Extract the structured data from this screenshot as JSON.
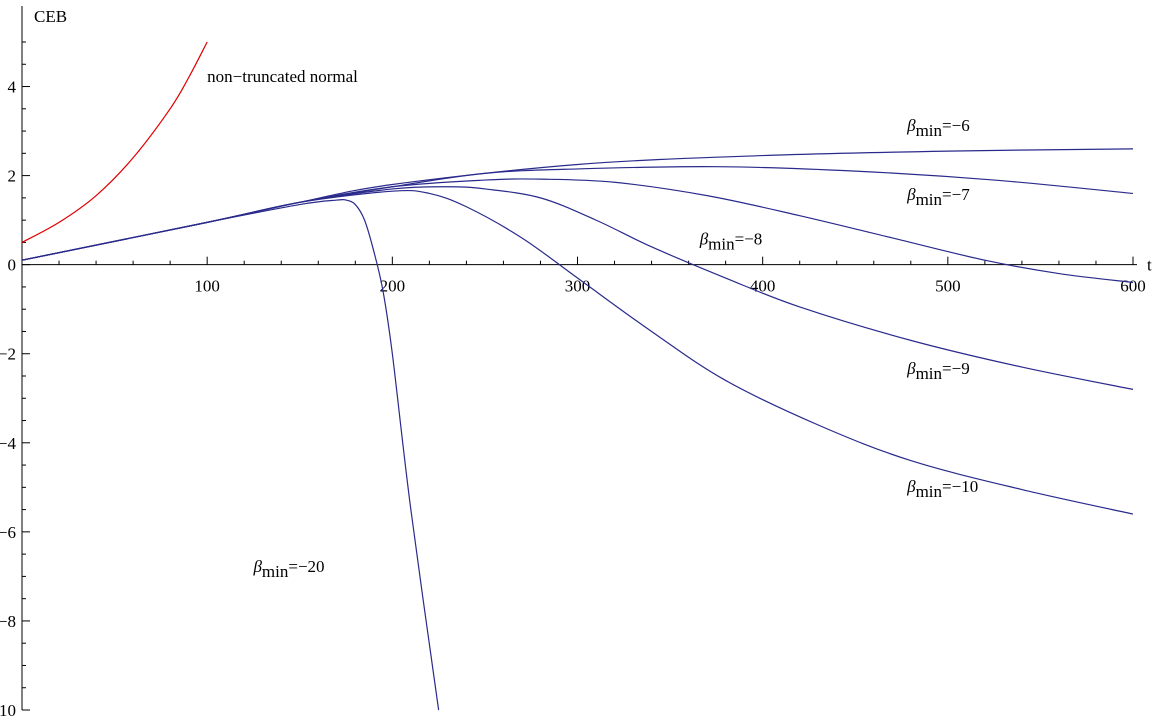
{
  "chart_data": {
    "type": "line",
    "xlabel": "t",
    "ylabel": "CEB",
    "xlim": [
      0,
      600
    ],
    "ylim": [
      -10,
      5
    ],
    "x_ticks": [
      100,
      200,
      300,
      400,
      500,
      600
    ],
    "x_tick_labels": [
      "100",
      "200",
      "300",
      "400",
      "500",
      "600"
    ],
    "y_ticks": [
      -10,
      -8,
      -6,
      -4,
      -2,
      0,
      2,
      4
    ],
    "y_tick_labels": [
      "−10",
      "−8",
      "−6",
      "−4",
      "−2",
      "0",
      "2",
      "4"
    ],
    "grid": false,
    "series": [
      {
        "name": "non−truncated normal",
        "color": "#e00000",
        "x": [
          0,
          20,
          40,
          60,
          80,
          90,
          100
        ],
        "y": [
          0.5,
          0.95,
          1.55,
          2.4,
          3.5,
          4.2,
          5.0
        ]
      },
      {
        "name": "βmin=−6",
        "color": "#2a2a8c",
        "x": [
          0,
          100,
          150,
          200,
          300,
          400,
          500,
          600
        ],
        "y": [
          0.1,
          0.95,
          1.4,
          1.8,
          2.25,
          2.45,
          2.55,
          2.6
        ]
      },
      {
        "name": "βmin=−7",
        "color": "#2a2a8c",
        "x": [
          0,
          100,
          150,
          200,
          250,
          300,
          375,
          450,
          525,
          600
        ],
        "y": [
          0.1,
          0.95,
          1.4,
          1.75,
          2.05,
          2.15,
          2.2,
          2.1,
          1.9,
          1.6
        ]
      },
      {
        "name": "βmin=−8",
        "color": "#2a2a8c",
        "x": [
          0,
          100,
          150,
          200,
          250,
          280,
          320,
          370,
          420,
          470,
          520,
          560,
          600
        ],
        "y": [
          0.1,
          0.95,
          1.4,
          1.75,
          1.9,
          1.92,
          1.85,
          1.55,
          1.1,
          0.6,
          0.1,
          -0.2,
          -0.4
        ]
      },
      {
        "name": "βmin=−9",
        "color": "#2a2a8c",
        "x": [
          0,
          100,
          150,
          200,
          230,
          250,
          280,
          310,
          340,
          380,
          420,
          480,
          540,
          600
        ],
        "y": [
          0.1,
          0.95,
          1.4,
          1.7,
          1.75,
          1.7,
          1.5,
          1.0,
          0.4,
          -0.3,
          -0.95,
          -1.7,
          -2.3,
          -2.8
        ]
      },
      {
        "name": "βmin=−10",
        "color": "#2a2a8c",
        "x": [
          0,
          100,
          150,
          200,
          220,
          240,
          270,
          300,
          340,
          380,
          430,
          480,
          540,
          600
        ],
        "y": [
          0.1,
          0.95,
          1.4,
          1.65,
          1.6,
          1.3,
          0.6,
          -0.3,
          -1.5,
          -2.6,
          -3.6,
          -4.4,
          -5.05,
          -5.6
        ]
      },
      {
        "name": "βmin=−20",
        "color": "#2a2a8c",
        "x": [
          0,
          100,
          150,
          170,
          175,
          180,
          185,
          190,
          195,
          200,
          210,
          225
        ],
        "y": [
          0.1,
          0.95,
          1.35,
          1.45,
          1.45,
          1.35,
          1.0,
          0.3,
          -0.6,
          -2.0,
          -5.5,
          -10
        ]
      }
    ],
    "annotations": [
      {
        "text": "non−truncated normal",
        "x": 100,
        "y": 4.1,
        "anchor": "start"
      },
      {
        "text": "βmin=−6",
        "x": 478,
        "y": 3.0,
        "anchor": "start"
      },
      {
        "text": "βmin=−7",
        "x": 478,
        "y": 1.45,
        "anchor": "start"
      },
      {
        "text": "βmin=−8",
        "x": 366,
        "y": 0.45,
        "anchor": "start"
      },
      {
        "text": "βmin=−9",
        "x": 478,
        "y": -2.45,
        "anchor": "start"
      },
      {
        "text": "βmin=−10",
        "x": 478,
        "y": -5.1,
        "anchor": "start"
      },
      {
        "text": "βmin=−20",
        "x": 125,
        "y": -6.9,
        "anchor": "start"
      }
    ]
  }
}
